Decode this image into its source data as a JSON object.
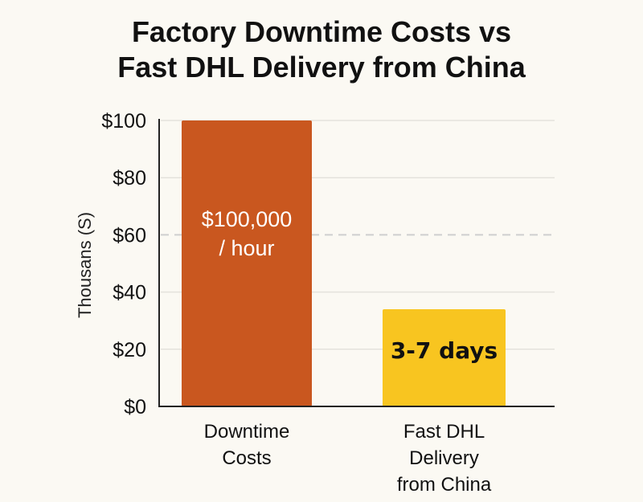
{
  "chart_data": {
    "type": "bar",
    "title": "Factory Downtime Costs vs Fast DHL Delivery from China",
    "title_lines": [
      "Factory Downtime Costs vs",
      "Fast DHL Delivery from China"
    ],
    "xlabel": "",
    "ylabel": "Thousans (S)",
    "ylim": [
      0,
      100
    ],
    "yticks": [
      0,
      20,
      40,
      60,
      80,
      100
    ],
    "ytick_labels": [
      "$0",
      "$20",
      "$40",
      "$60",
      "$80",
      "$100"
    ],
    "grid": true,
    "dashed_gridline_at": 60,
    "categories": [
      "Downtime Costs",
      "Fast DHL Delivery from China"
    ],
    "category_lines": [
      [
        "Downtime",
        "Costs"
      ],
      [
        "Fast DHL",
        "Delivery",
        "from China"
      ]
    ],
    "values": [
      100,
      34
    ],
    "bar_labels": [
      [
        "$100,000",
        "/ hour"
      ],
      [
        "3-7 days"
      ]
    ],
    "colors": [
      "#c9571f",
      "#f8c520"
    ],
    "label_colors": [
      "#ffffff",
      "#111111"
    ]
  }
}
